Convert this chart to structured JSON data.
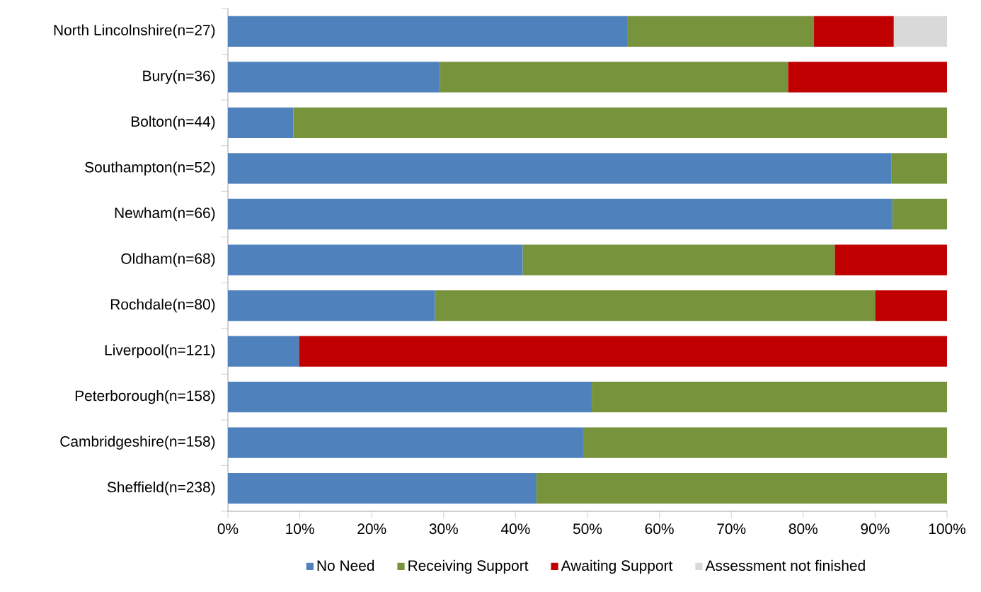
{
  "chart_data": {
    "type": "bar",
    "orientation": "horizontal",
    "stacked": true,
    "categories": [
      "North Lincolnshire(n=27)",
      "Bury(n=36)",
      "Bolton(n=44)",
      "Southampton(n=52)",
      "Newham(n=66)",
      "Oldham(n=68)",
      "Rochdale(n=80)",
      "Liverpool(n=121)",
      "Peterborough(n=158)",
      "Cambridgeshire(n=158)",
      "Sheffield(n=238)"
    ],
    "series": [
      {
        "name": "No Need",
        "color": "#4f81bd",
        "values": [
          55.6,
          29.5,
          9.1,
          92.3,
          92.4,
          41.0,
          28.8,
          9.9,
          50.6,
          49.4,
          42.9
        ]
      },
      {
        "name": "Receiving Support",
        "color": "#77933c",
        "values": [
          25.9,
          48.4,
          90.9,
          7.7,
          7.6,
          43.4,
          61.2,
          null,
          49.4,
          50.6,
          57.1
        ]
      },
      {
        "name": "Awaiting Support",
        "color": "#c00000",
        "values": [
          11.1,
          22.1,
          null,
          null,
          null,
          15.6,
          10.0,
          90.1,
          null,
          null,
          null
        ]
      },
      {
        "name": "Assessment not finished",
        "color": "#d9d9d9",
        "values": [
          7.4,
          null,
          null,
          null,
          null,
          null,
          null,
          null,
          null,
          null,
          null
        ]
      }
    ],
    "xlim": [
      0,
      100
    ],
    "xticks": [
      {
        "value": 0,
        "label": "0%"
      },
      {
        "value": 10,
        "label": "10%"
      },
      {
        "value": 20,
        "label": "20%"
      },
      {
        "value": 30,
        "label": "30%"
      },
      {
        "value": 40,
        "label": "40%"
      },
      {
        "value": 50,
        "label": "50%"
      },
      {
        "value": 60,
        "label": "60%"
      },
      {
        "value": 70,
        "label": "70%"
      },
      {
        "value": 80,
        "label": "80%"
      },
      {
        "value": 90,
        "label": "90%"
      },
      {
        "value": 100,
        "label": "100%"
      }
    ],
    "legend": "bottom"
  }
}
